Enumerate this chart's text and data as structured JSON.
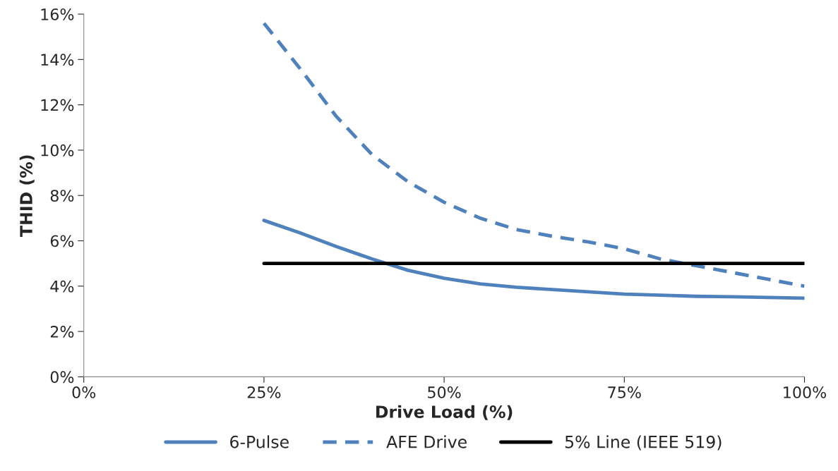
{
  "chart_data": {
    "type": "line",
    "xlabel": "Drive Load (%)",
    "ylabel": "THID (%)",
    "xlim": [
      0,
      100
    ],
    "ylim": [
      0,
      16
    ],
    "xticks": [
      {
        "value": 0,
        "label": "0%"
      },
      {
        "value": 25,
        "label": "25%"
      },
      {
        "value": 50,
        "label": "50%"
      },
      {
        "value": 75,
        "label": "75%"
      },
      {
        "value": 100,
        "label": "100%"
      }
    ],
    "yticks": [
      {
        "value": 0,
        "label": "0%"
      },
      {
        "value": 2,
        "label": "2%"
      },
      {
        "value": 4,
        "label": "4%"
      },
      {
        "value": 6,
        "label": "6%"
      },
      {
        "value": 8,
        "label": "8%"
      },
      {
        "value": 10,
        "label": "10%"
      },
      {
        "value": 12,
        "label": "12%"
      },
      {
        "value": 14,
        "label": "14%"
      },
      {
        "value": 16,
        "label": "16%"
      }
    ],
    "grid": false,
    "legend": "bottom",
    "series": [
      {
        "name": "6-Pulse",
        "color": "#4f81bd",
        "line_style": "solid",
        "x": [
          25,
          30,
          35,
          40,
          45,
          50,
          55,
          60,
          65,
          70,
          75,
          80,
          85,
          90,
          95,
          100
        ],
        "values": [
          6.9,
          6.35,
          5.75,
          5.2,
          4.7,
          4.35,
          4.1,
          3.95,
          3.85,
          3.75,
          3.65,
          3.6,
          3.55,
          3.53,
          3.5,
          3.47
        ]
      },
      {
        "name": "AFE Drive",
        "color": "#4f81bd",
        "line_style": "dashed",
        "x": [
          25,
          30,
          35,
          40,
          45,
          50,
          55,
          60,
          65,
          70,
          75,
          80,
          85,
          90,
          95,
          100
        ],
        "values": [
          15.6,
          13.6,
          11.5,
          9.8,
          8.6,
          7.7,
          7.0,
          6.5,
          6.2,
          5.95,
          5.65,
          5.2,
          4.9,
          4.6,
          4.3,
          4.0
        ]
      },
      {
        "name": "5% Line (IEEE 519)",
        "color": "#000000",
        "line_style": "solid",
        "x": [
          25,
          100
        ],
        "values": [
          5,
          5
        ]
      }
    ]
  }
}
